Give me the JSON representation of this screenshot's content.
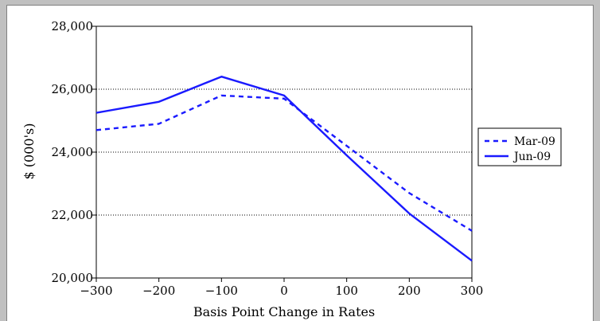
{
  "chart_data": {
    "type": "line",
    "title": "",
    "xlabel": "Basis Point Change in Rates",
    "ylabel": "$ (000's)",
    "x": [
      -300,
      -200,
      -100,
      0,
      100,
      200,
      300
    ],
    "x_tick_labels": [
      "−300",
      "−200",
      "−100",
      "0",
      "100",
      "200",
      "300"
    ],
    "xlim": [
      -300,
      300
    ],
    "ylim": [
      20000,
      28000
    ],
    "y_ticks": [
      20000,
      22000,
      24000,
      26000,
      28000
    ],
    "y_tick_labels": [
      "20,000",
      "22,000",
      "24,000",
      "26,000",
      "28,000"
    ],
    "grid": "horizontal dotted",
    "legend_position": "right",
    "series": [
      {
        "name": "Mar-09",
        "style": "dashed",
        "color": "#1a1aff",
        "values": [
          24700,
          24900,
          25800,
          25700,
          24200,
          22700,
          21500
        ]
      },
      {
        "name": "Jun-09",
        "style": "solid",
        "color": "#1a1aff",
        "values": [
          25250,
          25600,
          26400,
          25800,
          23900,
          22050,
          20550
        ]
      }
    ]
  }
}
